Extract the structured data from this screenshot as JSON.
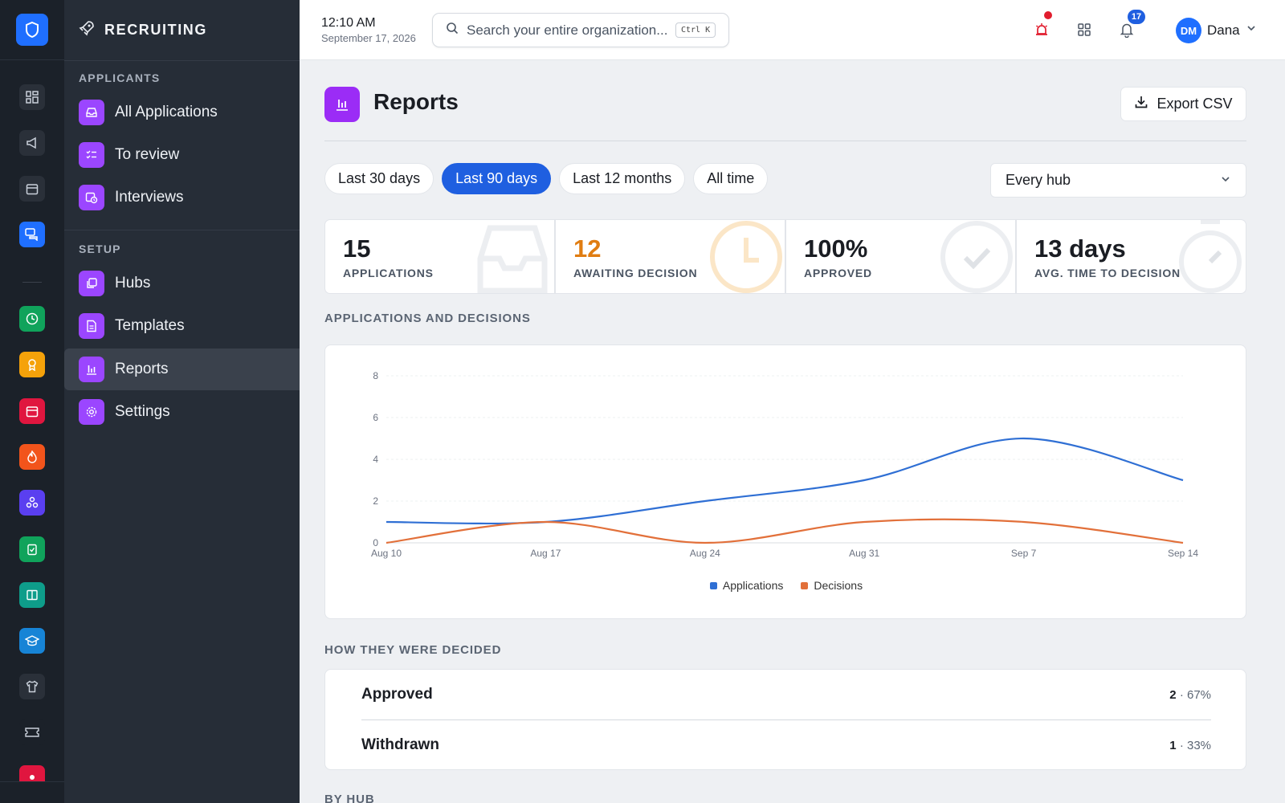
{
  "app": {
    "section_title": "RECRUITING"
  },
  "colors": {
    "accent": "#1f5fe0",
    "purple": "#9b46ff",
    "orange": "#e07d12",
    "applications": "#2f6fd4",
    "decisions": "#e2703a"
  },
  "rail": {
    "icons": [
      "shield-icon",
      "dashboard-icon",
      "megaphone-icon",
      "calendar-icon",
      "chat-icon",
      "clock-icon",
      "award-icon",
      "calendar-red-icon",
      "fire-icon",
      "network-icon",
      "clipboard-icon",
      "book-icon",
      "graduation-icon",
      "shirt-icon",
      "ticket-icon",
      "sun-icon"
    ]
  },
  "sidebar": {
    "applicants_label": "APPLICANTS",
    "setup_label": "SETUP",
    "items": [
      {
        "label": "All Applications",
        "icon": "inbox-icon"
      },
      {
        "label": "To review",
        "icon": "checklist-icon"
      },
      {
        "label": "Interviews",
        "icon": "calendar-clock-icon"
      },
      {
        "label": "Hubs",
        "icon": "hubs-icon"
      },
      {
        "label": "Templates",
        "icon": "document-icon"
      },
      {
        "label": "Reports",
        "icon": "bar-chart-icon",
        "active": true
      },
      {
        "label": "Settings",
        "icon": "gear-icon"
      }
    ]
  },
  "topbar": {
    "time": "12:10 AM",
    "date": "September 17, 2026",
    "search_placeholder": "Search your entire organization...",
    "shortcut": "Ctrl K",
    "notification_count": "17",
    "avatar_initials": "DM",
    "user_name": "Dana"
  },
  "page": {
    "title": "Reports",
    "export_label": "Export CSV",
    "ranges": [
      "Last 30 days",
      "Last 90 days",
      "Last 12 months",
      "All time"
    ],
    "active_range": "Last 90 days",
    "hub_select": "Every hub"
  },
  "stats": [
    {
      "value": "15",
      "label": "APPLICATIONS"
    },
    {
      "value": "12",
      "label": "AWAITING DECISION"
    },
    {
      "value": "100%",
      "label": "APPROVED"
    },
    {
      "value": "13 days",
      "label": "AVG. TIME TO DECISION"
    }
  ],
  "sections": {
    "chart": "APPLICATIONS AND DECISIONS",
    "decided": "HOW THEY WERE DECIDED",
    "by_hub": "BY HUB"
  },
  "chart_data": {
    "type": "line",
    "x": [
      "Aug 10",
      "Aug 17",
      "Aug 24",
      "Aug 31",
      "Sep 7",
      "Sep 14"
    ],
    "series": [
      {
        "name": "Applications",
        "values": [
          1,
          1,
          2,
          3,
          5,
          3
        ]
      },
      {
        "name": "Decisions",
        "values": [
          0,
          1,
          0,
          1,
          1,
          0
        ]
      }
    ],
    "ylim": [
      0,
      8
    ],
    "yticks": [
      0,
      2,
      4,
      6,
      8
    ],
    "grid": true,
    "legend": "bottom"
  },
  "decided": [
    {
      "name": "Approved",
      "count": "2",
      "pct": "· 67%"
    },
    {
      "name": "Withdrawn",
      "count": "1",
      "pct": "· 33%"
    }
  ]
}
